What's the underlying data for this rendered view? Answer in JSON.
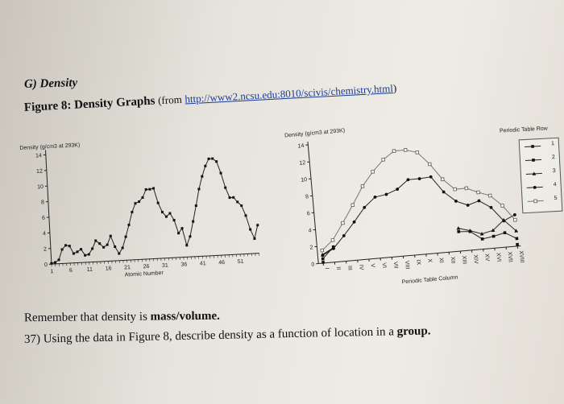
{
  "section": {
    "label": "G)",
    "title": "Density"
  },
  "figure": {
    "label": "Figure 8:",
    "title": "Density Graphs",
    "source_prefix": "(from",
    "source_link": "http://www2.ncsu.edu:8010/scivis/chemistry.html",
    "source_suffix": ")"
  },
  "chart_data": [
    {
      "type": "line",
      "title": "Density (g/cm3 at 293K)",
      "xlabel": "Atomic Number",
      "ylabel": "Density (g/cm3 at 293K)",
      "ylim": [
        0,
        14
      ],
      "yticks": [
        0,
        2,
        4,
        6,
        8,
        10,
        12,
        14
      ],
      "xticks": [
        1,
        6,
        11,
        16,
        21,
        26,
        31,
        36,
        41,
        46,
        51
      ],
      "xlim": [
        1,
        56
      ],
      "x": [
        1,
        2,
        3,
        4,
        5,
        6,
        7,
        8,
        9,
        10,
        11,
        12,
        13,
        14,
        15,
        16,
        17,
        18,
        19,
        20,
        21,
        22,
        23,
        24,
        25,
        26,
        27,
        28,
        29,
        30,
        31,
        32,
        33,
        34,
        35,
        36,
        37,
        38,
        39,
        40,
        41,
        42,
        43,
        44,
        45,
        46,
        47,
        48,
        49,
        50,
        51,
        52,
        53,
        54,
        55,
        56
      ],
      "y": [
        0.1,
        0.2,
        0.5,
        1.8,
        2.3,
        2.2,
        1.2,
        1.4,
        1.7,
        0.9,
        1.0,
        1.7,
        2.7,
        2.3,
        1.8,
        2.1,
        3.2,
        1.8,
        0.9,
        1.6,
        3.0,
        4.5,
        6.1,
        7.2,
        7.4,
        7.9,
        8.9,
        8.9,
        9.0,
        7.1,
        5.9,
        5.3,
        5.7,
        4.8,
        3.1,
        3.7,
        1.5,
        2.6,
        4.5,
        6.5,
        8.6,
        10.2,
        11.5,
        12.4,
        12.4,
        12.0,
        10.5,
        8.6,
        7.3,
        7.3,
        6.7,
        6.2,
        4.9,
        3.1,
        1.9,
        3.6
      ]
    },
    {
      "type": "line",
      "title": "Density (g/cm3 at 293K)",
      "xlabel": "Periodic Table Column",
      "ylabel": "Density (g/cm3 at 293K)",
      "ylim": [
        0,
        14
      ],
      "yticks": [
        0,
        2,
        4,
        6,
        8,
        10,
        12,
        14
      ],
      "categories": [
        "I",
        "II",
        "III",
        "IV",
        "V",
        "VI",
        "VII",
        "VIII",
        "IX",
        "X",
        "XI",
        "XII",
        "XIII",
        "XIV",
        "XV",
        "XVI",
        "XVII",
        "XVIII"
      ],
      "legend_title": "Periodic Table Row",
      "legend_position": "right",
      "series": [
        {
          "name": "1",
          "x": [
            1,
            18
          ],
          "values": [
            0.1,
            0.2
          ]
        },
        {
          "name": "2",
          "x": [
            1,
            2,
            13,
            14,
            15,
            16,
            17,
            18
          ],
          "values": [
            0.5,
            1.8,
            2.3,
            2.2,
            1.2,
            1.4,
            1.7,
            0.9
          ]
        },
        {
          "name": "3",
          "x": [
            1,
            2,
            13,
            14,
            15,
            16,
            17,
            18
          ],
          "values": [
            1.0,
            1.7,
            2.7,
            2.3,
            1.8,
            2.1,
            3.2,
            1.8
          ]
        },
        {
          "name": "4",
          "x": [
            1,
            2,
            3,
            4,
            5,
            6,
            7,
            8,
            9,
            10,
            11,
            12,
            13,
            14,
            15,
            16,
            17,
            18
          ],
          "values": [
            0.9,
            1.6,
            3.0,
            4.5,
            6.1,
            7.2,
            7.4,
            7.9,
            8.9,
            8.9,
            9.0,
            7.1,
            5.9,
            5.3,
            5.7,
            4.8,
            3.1,
            3.7
          ]
        },
        {
          "name": "5",
          "x": [
            1,
            2,
            3,
            4,
            5,
            6,
            7,
            8,
            9,
            10,
            11,
            12,
            13,
            14,
            15,
            16,
            17,
            18
          ],
          "values": [
            1.5,
            2.6,
            4.5,
            6.5,
            8.6,
            10.2,
            11.5,
            12.4,
            12.4,
            12.0,
            10.5,
            8.6,
            7.3,
            7.3,
            6.7,
            6.2,
            4.9,
            3.1
          ]
        }
      ]
    }
  ],
  "note": {
    "prefix": "Remember that density is ",
    "bold": "mass/volume."
  },
  "question": {
    "number": "37)",
    "prefix": "Using the data in Figure 8, describe density as a function of location in a ",
    "bold": "group."
  }
}
